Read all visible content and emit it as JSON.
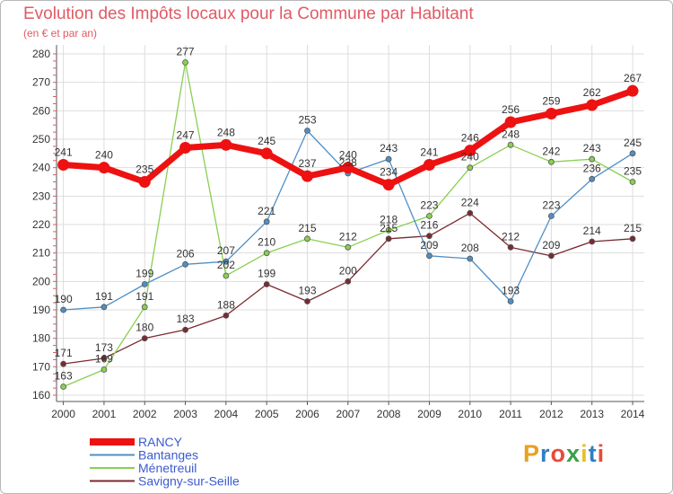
{
  "title": "Evolution des Impôts locaux pour la Commune par Habitant",
  "subtitle": "(en € et par an)",
  "logo": "Proxiti",
  "chart_data": {
    "type": "line",
    "x": [
      2000,
      2001,
      2002,
      2003,
      2004,
      2005,
      2006,
      2007,
      2008,
      2009,
      2010,
      2011,
      2012,
      2013,
      2014
    ],
    "ylim": [
      160,
      280
    ],
    "yticks": [
      160,
      170,
      180,
      190,
      200,
      210,
      220,
      230,
      240,
      250,
      260,
      270,
      280
    ],
    "grid": true,
    "legend_position": "bottom-left",
    "series": [
      {
        "name": "RANCY",
        "color": "#ee1111",
        "values": [
          241,
          240,
          235,
          247,
          248,
          245,
          237,
          240,
          234,
          241,
          246,
          256,
          259,
          262,
          267
        ]
      },
      {
        "name": "Bantanges",
        "color": "#4f8fc4",
        "values": [
          190,
          191,
          199,
          206,
          207,
          221,
          253,
          238,
          243,
          209,
          208,
          193,
          223,
          236,
          245
        ]
      },
      {
        "name": "Ménetreuil",
        "color": "#88d050",
        "values": [
          163,
          169,
          191,
          277,
          202,
          210,
          215,
          212,
          218,
          223,
          240,
          248,
          242,
          243,
          235
        ]
      },
      {
        "name": "Savigny-sur-Seille",
        "color": "#7a2a30",
        "values": [
          171,
          173,
          180,
          183,
          188,
          199,
          193,
          200,
          215,
          216,
          224,
          212,
          209,
          214,
          215
        ]
      }
    ],
    "value_labels": {
      "RANCY": [
        "241",
        "240",
        "235",
        "247",
        "248",
        "245",
        "237",
        "240",
        "234",
        "241",
        "246",
        "256",
        "259",
        "262",
        "267"
      ],
      "Bantanges": [
        "190",
        "191",
        "199",
        "206",
        "207",
        "221",
        "253",
        "238",
        "243",
        "209",
        "208",
        "193",
        "223",
        "236",
        "245"
      ],
      "Ménetreuil": [
        "163",
        "169",
        "191",
        "277",
        "202",
        "210",
        "215",
        "212",
        "218",
        "223",
        "240",
        "248",
        "242",
        "243",
        "235"
      ],
      "Savigny-sur-Seille": [
        "171",
        "173",
        "180",
        "183",
        "188",
        "199",
        "193",
        "200",
        "215",
        "216",
        "224",
        "212",
        "209",
        "214",
        "215"
      ]
    }
  }
}
